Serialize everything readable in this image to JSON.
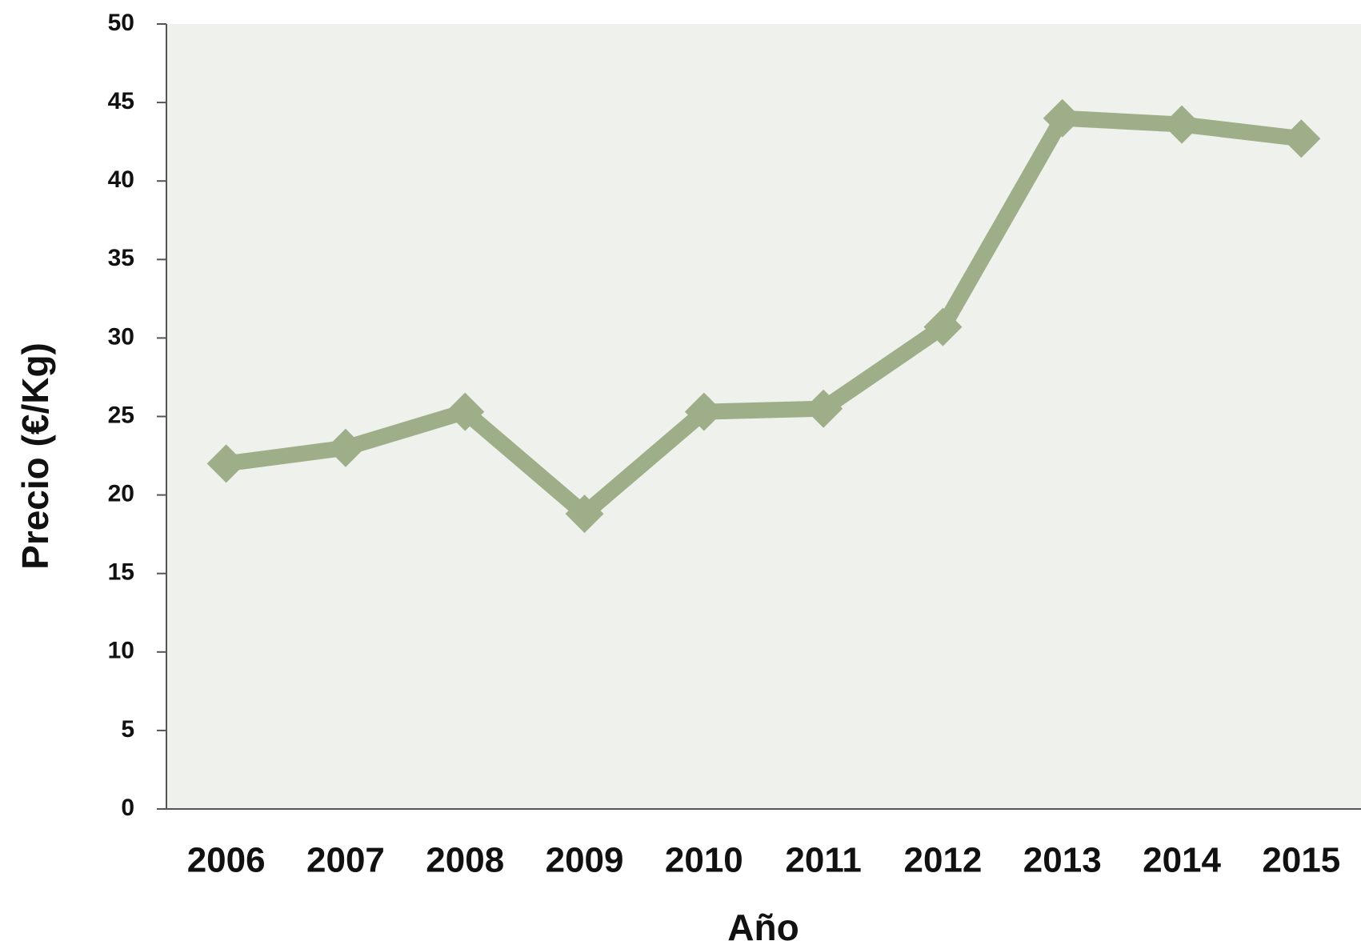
{
  "chart_data": {
    "type": "line",
    "x_label": "Año",
    "y_label": "Precio (€/Kg)",
    "categories": [
      "2006",
      "2007",
      "2008",
      "2009",
      "2010",
      "2011",
      "2012",
      "2013",
      "2014",
      "2015"
    ],
    "values": [
      22,
      23,
      25.3,
      18.8,
      25.3,
      25.5,
      30.7,
      44,
      43.6,
      42.7
    ],
    "color": "#9eae89",
    "ylim": [
      0,
      50
    ],
    "yticks": [
      0,
      5,
      10,
      15,
      20,
      25,
      30,
      35,
      40,
      45,
      50
    ]
  }
}
